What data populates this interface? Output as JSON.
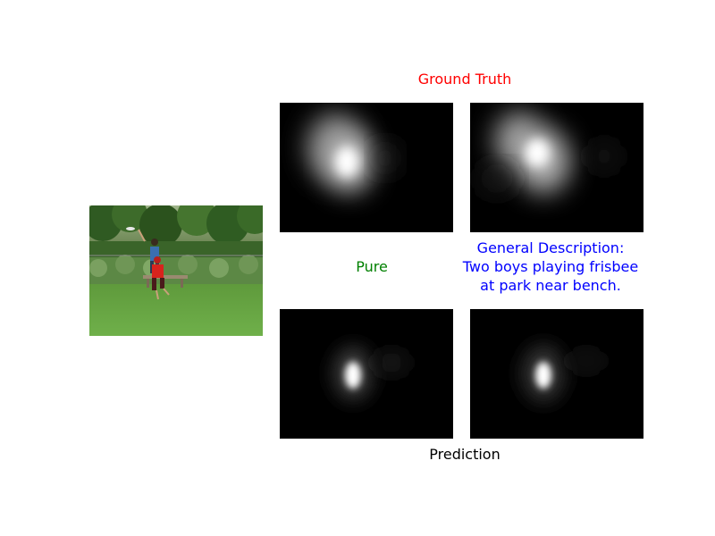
{
  "titles": {
    "ground_truth": "Ground Truth",
    "prediction": "Prediction"
  },
  "row_labels": {
    "pure": "Pure",
    "general": "General Description:\nTwo boys playing frisbee\n  at park near bench."
  },
  "colors": {
    "ground_truth_title": "#ff0000",
    "pure_label": "#008000",
    "general_label": "#0000ff",
    "prediction_title": "#000000"
  },
  "images": {
    "input_photo": "photo of two boys playing frisbee on grass near a bench, trees in background",
    "heatmaps": [
      "ground-truth-pure",
      "ground-truth-general",
      "prediction-pure",
      "prediction-general"
    ]
  }
}
